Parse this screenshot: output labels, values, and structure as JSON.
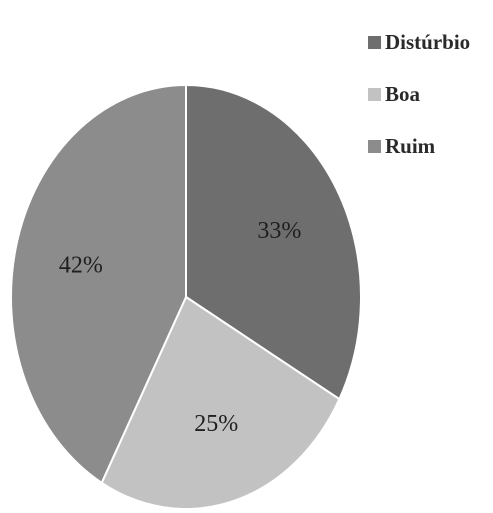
{
  "chart_data": {
    "type": "pie",
    "title": "",
    "categories": [
      "Distúrbio",
      "Boa",
      "Ruim"
    ],
    "values": [
      33,
      25,
      42
    ],
    "labels": [
      "33%",
      "25%",
      "42%"
    ],
    "colors": [
      "#6e6e6e",
      "#c2c2c2",
      "#8c8c8c"
    ],
    "legend_position": "top-right",
    "start_angle_deg": 0,
    "direction": "clockwise"
  }
}
